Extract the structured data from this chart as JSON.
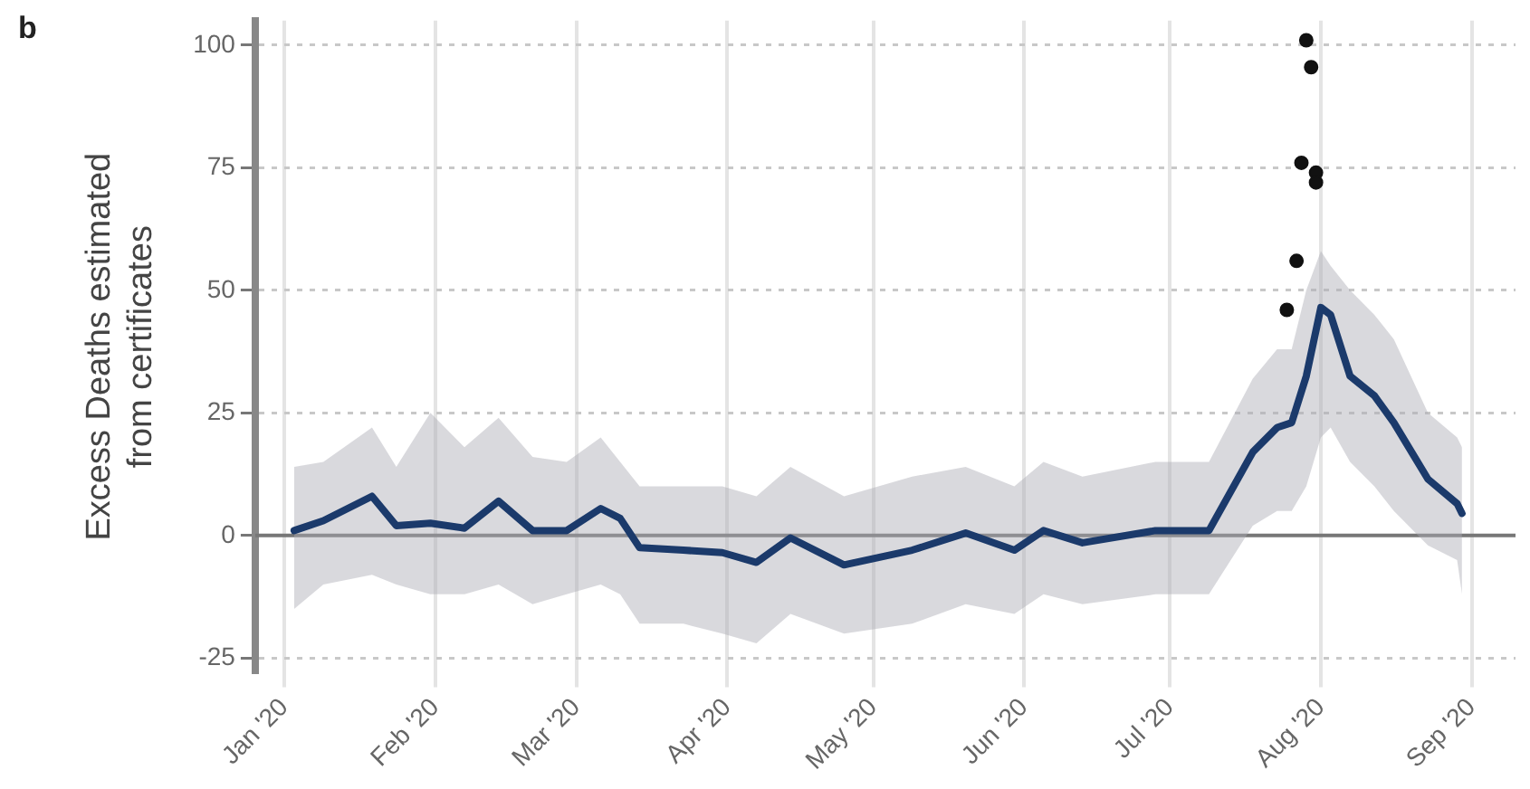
{
  "chart_data": {
    "type": "line",
    "ylabel": "Excess Deaths estimated\nfrom certificates",
    "annotations": [
      "b"
    ],
    "xlim": [
      "2019-12-26",
      "2020-09-10"
    ],
    "xticks": [
      {
        "value": "2020-01-01",
        "label": "Jan '20"
      },
      {
        "value": "2020-02-01",
        "label": "Feb '20"
      },
      {
        "value": "2020-03-01",
        "label": "Mar '20"
      },
      {
        "value": "2020-04-01",
        "label": "Apr '20"
      },
      {
        "value": "2020-05-01",
        "label": "May '20"
      },
      {
        "value": "2020-06-01",
        "label": "Jun '20"
      },
      {
        "value": "2020-07-01",
        "label": "Jul '20"
      },
      {
        "value": "2020-08-01",
        "label": "Aug '20"
      },
      {
        "value": "2020-09-01",
        "label": "Sep '20"
      }
    ],
    "ylim": [
      -28,
      105
    ],
    "yticks": [
      -25,
      0,
      25,
      50,
      75,
      100
    ],
    "grid": true,
    "legend": false,
    "marker": "none",
    "line_style": "solid",
    "ref_lines": [
      {
        "axis": "y",
        "value": 0,
        "color": "#777777"
      }
    ],
    "series": [
      {
        "color": "#1b3a6b",
        "x": [
          "2020-01-03",
          "2020-01-09",
          "2020-01-19",
          "2020-01-24",
          "2020-01-31",
          "2020-02-07",
          "2020-02-14",
          "2020-02-21",
          "2020-02-28",
          "2020-03-06",
          "2020-03-10",
          "2020-03-14",
          "2020-03-23",
          "2020-03-31",
          "2020-04-07",
          "2020-04-14",
          "2020-04-25",
          "2020-05-09",
          "2020-05-20",
          "2020-05-30",
          "2020-06-05",
          "2020-06-13",
          "2020-06-28",
          "2020-07-09",
          "2020-07-18",
          "2020-07-23",
          "2020-07-26",
          "2020-07-29",
          "2020-08-01",
          "2020-08-03",
          "2020-08-07",
          "2020-08-12",
          "2020-08-16",
          "2020-08-23",
          "2020-08-29",
          "2020-08-30"
        ],
        "values": [
          1,
          3,
          8,
          2,
          2.5,
          1.5,
          7,
          1,
          1,
          5.5,
          3.5,
          -2.5,
          -3,
          -3.5,
          -5.5,
          -0.5,
          -6,
          -3,
          0.5,
          -3,
          1,
          -1.5,
          1,
          1,
          17,
          22,
          23,
          32.5,
          46.5,
          45,
          32.5,
          28.5,
          23,
          11.5,
          6.5,
          4.5
        ],
        "lower": [
          -15,
          -10,
          -8,
          -10,
          -12,
          -12,
          -10,
          -14,
          -12,
          -10,
          -12,
          -18,
          -18,
          -20,
          -22,
          -16,
          -20,
          -18,
          -14,
          -16,
          -12,
          -14,
          -12,
          -12,
          2,
          5,
          5,
          10,
          20,
          22,
          15,
          10,
          5,
          -2,
          -5,
          -12
        ],
        "upper": [
          14,
          15,
          22,
          14,
          25,
          18,
          24,
          16,
          15,
          20,
          15,
          10,
          10,
          10,
          8,
          14,
          8,
          12,
          14,
          10,
          15,
          12,
          15,
          15,
          32,
          38,
          38,
          50,
          58,
          55,
          50,
          45,
          40,
          25,
          20,
          18
        ]
      },
      {
        "type": "scatter",
        "color": "#111111",
        "marker": "circle",
        "x": [
          "2020-07-29",
          "2020-07-30",
          "2020-07-28",
          "2020-07-31",
          "2020-07-31",
          "2020-07-27",
          "2020-07-25"
        ],
        "values": [
          101,
          95.5,
          76,
          74,
          72,
          56,
          46
        ]
      }
    ]
  }
}
